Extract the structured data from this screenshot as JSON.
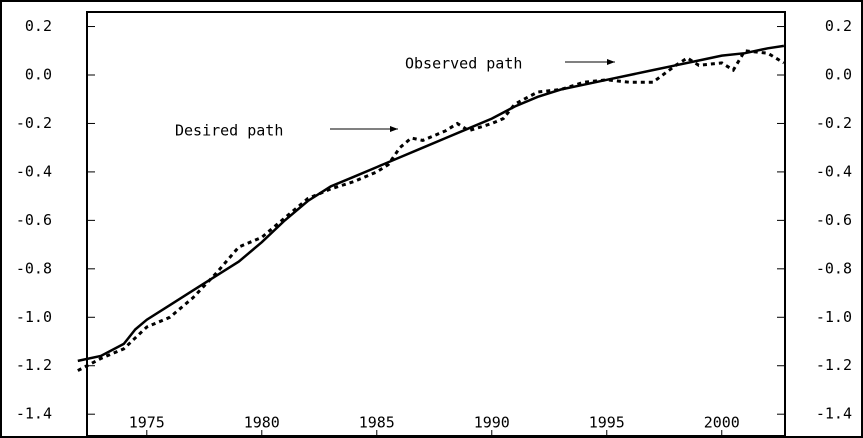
{
  "chart_data": {
    "type": "line",
    "xlim": [
      1972.4,
      2002.75
    ],
    "xticks": [
      1975,
      1980,
      1985,
      1990,
      1995,
      2000
    ],
    "ylim": [
      -1.49,
      0.26
    ],
    "yticks": [
      0.2,
      {
        "value": 0,
        "label": "0.0"
      },
      -0.2,
      -0.4,
      -0.6,
      -0.8,
      {
        "value": -1,
        "label": "-1.0"
      },
      -1.2,
      -1.4
    ],
    "y2lim": [
      -1.49,
      0.26
    ],
    "y2ticks": [
      0.2,
      {
        "value": 0,
        "label": "0.0"
      },
      -0.2,
      -0.4,
      -0.6,
      -0.8,
      {
        "value": -1,
        "label": "-1.0"
      },
      -1.2,
      -1.4
    ],
    "grid": false,
    "series": [
      {
        "name": "Observed path",
        "color": "#000000",
        "dash": false,
        "x": [
          1972,
          1973,
          1974,
          1974.5,
          1975,
          1976,
          1977,
          1978,
          1979,
          1980,
          1981,
          1982,
          1983,
          1984,
          1985,
          1986,
          1987,
          1988,
          1989,
          1990,
          1991,
          1992,
          1993,
          1994,
          1995,
          1996,
          1997,
          1998,
          1999,
          2000,
          2001,
          2002,
          2002.7
        ],
        "values": [
          -1.18,
          -1.16,
          -1.11,
          -1.05,
          -1.01,
          -0.95,
          -0.89,
          -0.83,
          -0.77,
          -0.69,
          -0.6,
          -0.52,
          -0.46,
          -0.42,
          -0.38,
          -0.34,
          -0.3,
          -0.26,
          -0.22,
          -0.18,
          -0.13,
          -0.09,
          -0.06,
          -0.04,
          -0.02,
          0,
          0.02,
          0.04,
          0.06,
          0.08,
          0.09,
          0.11,
          0.12
        ]
      },
      {
        "name": "Desired path",
        "color": "#000000",
        "dash": true,
        "x": [
          1972,
          1973,
          1974,
          1975,
          1976,
          1977,
          1978,
          1979,
          1980,
          1981,
          1982,
          1983,
          1984,
          1985,
          1985.5,
          1986,
          1986.5,
          1987,
          1988,
          1988.5,
          1989,
          1990,
          1990.5,
          1991,
          1992,
          1993,
          1994,
          1995,
          1996,
          1997,
          1998,
          1998.5,
          1999,
          2000,
          2000.5,
          2001,
          2002,
          2002.7
        ],
        "values": [
          -1.22,
          -1.17,
          -1.13,
          -1.04,
          -1.0,
          -0.92,
          -0.82,
          -0.71,
          -0.67,
          -0.59,
          -0.51,
          -0.47,
          -0.44,
          -0.4,
          -0.37,
          -0.3,
          -0.26,
          -0.27,
          -0.23,
          -0.2,
          -0.23,
          -0.2,
          -0.18,
          -0.12,
          -0.07,
          -0.06,
          -0.03,
          -0.02,
          -0.03,
          -0.03,
          0.04,
          0.07,
          0.04,
          0.05,
          0.02,
          0.1,
          0.09,
          0.05
        ]
      }
    ]
  }
}
